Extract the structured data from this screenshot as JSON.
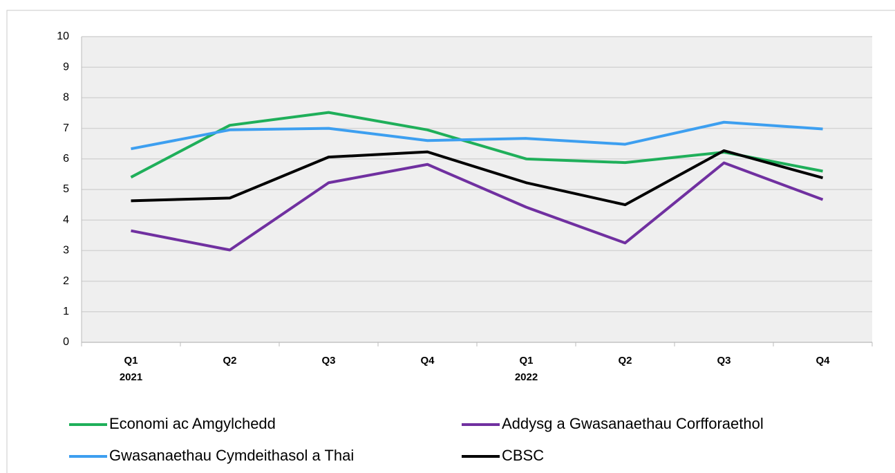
{
  "chart_data": {
    "type": "line",
    "categories": [
      [
        "Q1",
        "2021"
      ],
      [
        "Q2"
      ],
      [
        "Q3"
      ],
      [
        "Q4"
      ],
      [
        "Q1",
        "2022"
      ],
      [
        "Q2"
      ],
      [
        "Q3"
      ],
      [
        "Q4"
      ]
    ],
    "series": [
      {
        "name": "Economi ac Amgylchedd",
        "color": "#1faf5a",
        "values": [
          5.4,
          7.1,
          7.52,
          6.95,
          6.0,
          5.88,
          6.22,
          5.6
        ]
      },
      {
        "name": "Addysg a Gwasanaethau Corfforaethol",
        "color": "#7030a0",
        "values": [
          3.65,
          3.02,
          5.22,
          5.82,
          4.42,
          3.25,
          5.87,
          4.67
        ]
      },
      {
        "name": "Gwasanaethau Cymdeithasol a Thai",
        "color": "#3d9ff0",
        "values": [
          6.33,
          6.95,
          7.0,
          6.6,
          6.67,
          6.48,
          7.2,
          6.98
        ]
      },
      {
        "name": "CBSC",
        "color": "#000000",
        "values": [
          4.63,
          4.72,
          6.06,
          6.23,
          5.22,
          4.5,
          6.27,
          5.38
        ]
      }
    ],
    "ylim": [
      0,
      10
    ],
    "yticks": [
      0,
      1,
      2,
      3,
      4,
      5,
      6,
      7,
      8,
      9,
      10
    ],
    "grid": true
  }
}
